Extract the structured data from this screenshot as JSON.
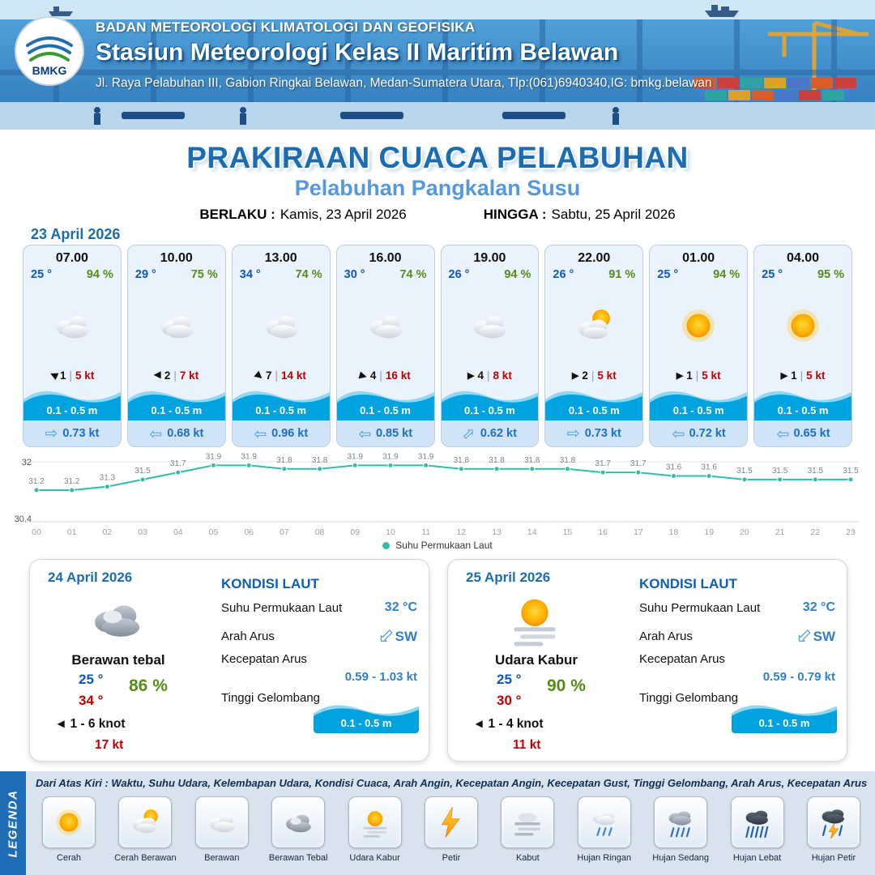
{
  "header": {
    "logo_text": "BMKG",
    "agency": "BADAN METEOROLOGI KLIMATOLOGI DAN GEOFISIKA",
    "station": "Stasiun Meteorologi Kelas II Maritim Belawan",
    "address": "Jl. Raya Pelabuhan III, Gabion Ringkai Belawan, Medan-Sumatera Utara, Tlp:(061)6940340,IG: bmkg.belawan"
  },
  "title": {
    "main": "PRAKIRAAN CUACA PELABUHAN",
    "subtitle": "Pelabuhan Pangkalan Susu",
    "valid_label": "BERLAKU :",
    "valid_value": "Kamis, 23 April 2026",
    "until_label": "HINGGA :",
    "until_value": "Sabtu, 25 April 2026"
  },
  "forecast": {
    "date": "23 April 2026",
    "sep": "|",
    "cards": [
      {
        "time": "07.00",
        "temp": "25 °",
        "rh": "94 %",
        "icon": "sym-cloud",
        "wind_deg": 205,
        "wind": "1",
        "gust": "5 kt",
        "wave": "0.1 - 0.5 m",
        "current_deg": 0,
        "current": "0.73 kt"
      },
      {
        "time": "10.00",
        "temp": "29 °",
        "rh": "75 %",
        "icon": "sym-cloud",
        "wind_deg": 180,
        "wind": "2",
        "gust": "7 kt",
        "wave": "0.1 - 0.5 m",
        "current_deg": 180,
        "current": "0.68 kt"
      },
      {
        "time": "13.00",
        "temp": "34 °",
        "rh": "74 %",
        "icon": "sym-cloud",
        "wind_deg": 40,
        "wind": "7",
        "gust": "14 kt",
        "wave": "0.1 - 0.5 m",
        "current_deg": 180,
        "current": "0.96 kt"
      },
      {
        "time": "16.00",
        "temp": "30 °",
        "rh": "74 %",
        "icon": "sym-cloud",
        "wind_deg": 15,
        "wind": "4",
        "gust": "16 kt",
        "wave": "0.1 - 0.5 m",
        "current_deg": 180,
        "current": "0.85 kt"
      },
      {
        "time": "19.00",
        "temp": "26 °",
        "rh": "94 %",
        "icon": "sym-cloud",
        "wind_deg": 0,
        "wind": "4",
        "gust": "8 kt",
        "wave": "0.1 - 0.5 m",
        "current_deg": -45,
        "current": "0.62 kt"
      },
      {
        "time": "22.00",
        "temp": "26 °",
        "rh": "91 %",
        "icon": "sym-suncloud",
        "wind_deg": 0,
        "wind": "2",
        "gust": "5 kt",
        "wave": "0.1 - 0.5 m",
        "current_deg": 0,
        "current": "0.73 kt"
      },
      {
        "time": "01.00",
        "temp": "25 °",
        "rh": "94 %",
        "icon": "sym-sun",
        "wind_deg": 0,
        "wind": "1",
        "gust": "5 kt",
        "wave": "0.1 - 0.5 m",
        "current_deg": 180,
        "current": "0.72 kt"
      },
      {
        "time": "04.00",
        "temp": "25 °",
        "rh": "95 %",
        "icon": "sym-sun",
        "wind_deg": 0,
        "wind": "1",
        "gust": "5 kt",
        "wave": "0.1 - 0.5 m",
        "current_deg": 180,
        "current": "0.65 kt"
      }
    ]
  },
  "chart_data": {
    "type": "line",
    "legend": "Suhu Permukaan Laut",
    "x": [
      "00",
      "01",
      "02",
      "03",
      "04",
      "05",
      "06",
      "07",
      "08",
      "09",
      "10",
      "11",
      "12",
      "13",
      "14",
      "15",
      "16",
      "17",
      "18",
      "19",
      "20",
      "21",
      "22",
      "23"
    ],
    "values": [
      31.2,
      31.2,
      31.3,
      31.5,
      31.7,
      31.9,
      31.9,
      31.8,
      31.8,
      31.9,
      31.9,
      31.9,
      31.8,
      31.8,
      31.8,
      31.8,
      31.7,
      31.7,
      31.6,
      31.6,
      31.5,
      31.5,
      31.5,
      31.5
    ],
    "ylim": [
      30.4,
      32
    ],
    "yticks": [
      32,
      30.4
    ],
    "line_color": "#2fbfa8"
  },
  "daily": [
    {
      "date": "24 April 2026",
      "icon_href": "#sym-cloudthick",
      "condition": "Berawan tebal",
      "tmin": "25 °",
      "tmax": "34 °",
      "rh": "86 %",
      "wind": "1 - 6 knot",
      "wind_deg": 180,
      "gust": "17 kt",
      "sea": {
        "heading": "KONDISI LAUT",
        "sst_label": "Suhu Permukaan Laut",
        "sst": "32 °C",
        "dir_label": "Arah Arus",
        "dir": "SW",
        "speed_label": "Kecepatan Arus",
        "speed": "0.59 - 1.03 kt",
        "wave_label": "Tinggi Gelombang",
        "wave": "0.1 - 0.5 m"
      }
    },
    {
      "date": "25 April 2026",
      "icon_href": "#sym-hazesun",
      "condition": "Udara Kabur",
      "tmin": "25 °",
      "tmax": "30 °",
      "rh": "90 %",
      "wind": "1 - 4 knot",
      "wind_deg": 180,
      "gust": "11 kt",
      "sea": {
        "heading": "KONDISI LAUT",
        "sst_label": "Suhu Permukaan Laut",
        "sst": "32 °C",
        "dir_label": "Arah Arus",
        "dir": "SW",
        "speed_label": "Kecepatan Arus",
        "speed": "0.59 - 0.79 kt",
        "wave_label": "Tinggi Gelombang",
        "wave": "0.1 - 0.5 m"
      }
    }
  ],
  "legend": {
    "sidebar": "LEGENDA",
    "description": "Dari Atas Kiri : Waktu, Suhu Udara, Kelembapan Udara, Kondisi Cuaca, Arah Angin, Kecepatan Angin, Kecepatan Gust, Tinggi Gelombang, Arah Arus, Kecepatan Arus",
    "items": [
      {
        "label": "Cerah",
        "icon": "sym-sun"
      },
      {
        "label": "Cerah Berawan",
        "icon": "sym-suncloud"
      },
      {
        "label": "Berawan",
        "icon": "sym-cloud"
      },
      {
        "label": "Berawan Tebal",
        "icon": "sym-cloudthick"
      },
      {
        "label": "Udara Kabur",
        "icon": "sym-hazesun"
      },
      {
        "label": "Petir",
        "icon": "sym-petir"
      },
      {
        "label": "Kabut",
        "icon": "sym-kabut"
      },
      {
        "label": "Hujan Ringan",
        "icon": "sym-rainlight"
      },
      {
        "label": "Hujan Sedang",
        "icon": "sym-rainmed"
      },
      {
        "label": "Hujan Lebat",
        "icon": "sym-rainheavy"
      },
      {
        "label": "Hujan Petir",
        "icon": "sym-rainthunder"
      }
    ]
  },
  "icons": {
    "wind_arrow": "▶",
    "current_arrow": "⇨"
  },
  "colors": {
    "accent_blue": "#1b6cb0",
    "sub_blue": "#5598dc",
    "temp_blue": "#0b57c2",
    "humidity_green": "#558c17",
    "gust_red": "#c00000",
    "wave_blue": "#00a2e0",
    "current_bg": "#cfe4f6",
    "sst_line": "#2fbfa8",
    "legend_bg": "#d8e3ee",
    "legend_bar": "#1e6db5"
  }
}
